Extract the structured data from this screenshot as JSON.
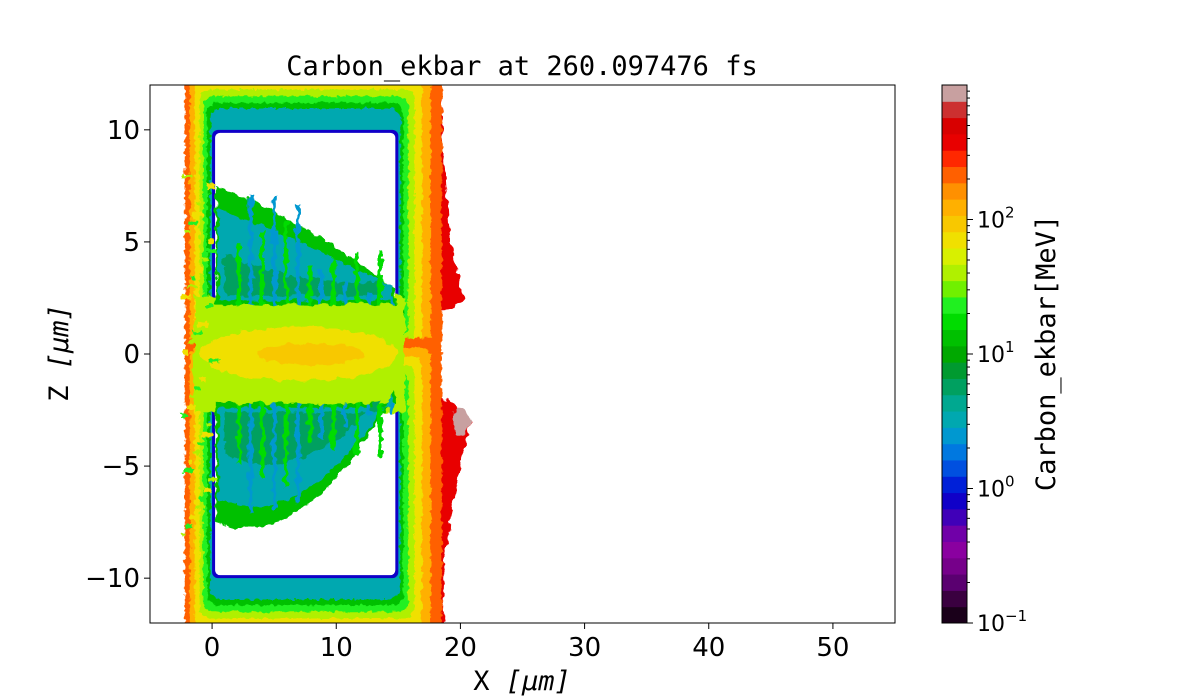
{
  "chart_data": {
    "type": "heatmap",
    "title": "Carbon_ekbar at 260.097476 fs",
    "xlabel_text": "X",
    "xlabel_unit": "[μm]",
    "ylabel_text": "Z",
    "ylabel_unit": "[μm]",
    "xlim": [
      -5,
      55
    ],
    "ylim": [
      -12,
      12
    ],
    "xticks": [
      0,
      10,
      20,
      30,
      40,
      50
    ],
    "xtick_labels": [
      "0",
      "10",
      "20",
      "30",
      "40",
      "50"
    ],
    "yticks": [
      -10,
      -5,
      0,
      5,
      10
    ],
    "ytick_labels": [
      "−10",
      "−5",
      "0",
      "5",
      "10"
    ],
    "colorbar": {
      "label": "Carbon_ekbar[MeV]",
      "scale": "log",
      "range": [
        0.1,
        1000
      ],
      "ticks": [
        0.1,
        1,
        10,
        100
      ],
      "tick_labels": [
        {
          "base": "10",
          "exp": "−1"
        },
        {
          "base": "10",
          "exp": "0"
        },
        {
          "base": "10",
          "exp": "1"
        },
        {
          "base": "10",
          "exp": "2"
        }
      ],
      "levels": [
        "#1a001a",
        "#3a0040",
        "#5a0070",
        "#76008a",
        "#8a00a0",
        "#7000a8",
        "#4000b8",
        "#1000c8",
        "#0020d8",
        "#0050e0",
        "#0078e0",
        "#0098d0",
        "#00a8b0",
        "#00a890",
        "#00a060",
        "#009a30",
        "#00a800",
        "#00c000",
        "#00dc00",
        "#20f020",
        "#70f000",
        "#b0f000",
        "#d8f000",
        "#f0e000",
        "#f8c800",
        "#ffb000",
        "#ff9000",
        "#ff6000",
        "#ff2800",
        "#e80000",
        "#d80000",
        "#cc3030",
        "#c8a0a0"
      ]
    },
    "structure": {
      "upper_foil_box": {
        "x": [
          0,
          15
        ],
        "z": [
          2.3,
          10
        ]
      },
      "lower_foil_box": {
        "x": [
          0,
          15
        ],
        "z": [
          -10,
          -2.3
        ]
      },
      "hot_front_x": [
        15.5,
        20.5
      ]
    }
  }
}
